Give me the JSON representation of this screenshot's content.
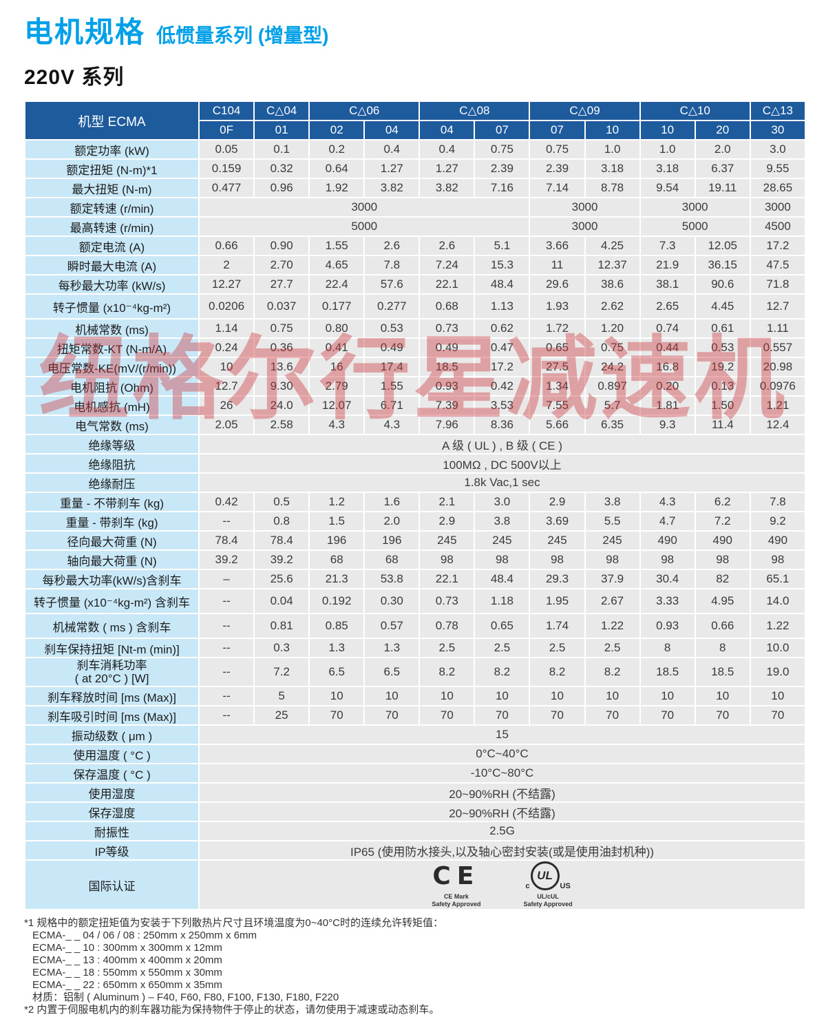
{
  "page": {
    "title": "电机规格",
    "subtitle": "低惯量系列 (增量型)",
    "section_title": "220V 系列",
    "watermark": "纽格尔行星减速机"
  },
  "colors": {
    "title_blue": "#00a0e9",
    "header_blue": "#1d5b9d",
    "label_blue": "#c8e8f8",
    "cell_gray": "#e9e9e9",
    "watermark_red": "#cf383c"
  },
  "table": {
    "corner_label": "机型 ECMA",
    "header_groups": [
      {
        "label": "C104",
        "cols": 1
      },
      {
        "label": "C△04",
        "cols": 1
      },
      {
        "label": "C△06",
        "cols": 2
      },
      {
        "label": "C△08",
        "cols": 2
      },
      {
        "label": "C△09",
        "cols": 2
      },
      {
        "label": "C△10",
        "cols": 2
      },
      {
        "label": "C△13",
        "cols": 1
      }
    ],
    "sub_columns": [
      "0F",
      "01",
      "02",
      "04",
      "04",
      "07",
      "07",
      "10",
      "10",
      "20",
      "30"
    ],
    "rows": [
      {
        "label": "额定功率 (kW)",
        "values": [
          "0.05",
          "0.1",
          "0.2",
          "0.4",
          "0.4",
          "0.75",
          "0.75",
          "1.0",
          "1.0",
          "2.0",
          "3.0"
        ]
      },
      {
        "label": "额定扭矩 (N-m)*1",
        "values": [
          "0.159",
          "0.32",
          "0.64",
          "1.27",
          "1.27",
          "2.39",
          "2.39",
          "3.18",
          "3.18",
          "6.37",
          "9.55"
        ]
      },
      {
        "label": "最大扭矩 (N-m)",
        "values": [
          "0.477",
          "0.96",
          "1.92",
          "3.82",
          "3.82",
          "7.16",
          "7.14",
          "8.78",
          "9.54",
          "19.11",
          "28.65"
        ]
      },
      {
        "label": "额定转速 (r/min)",
        "spans": [
          {
            "text": "3000",
            "cols": 6
          },
          {
            "text": "3000",
            "cols": 2
          },
          {
            "text": "3000",
            "cols": 2
          },
          {
            "text": "3000",
            "cols": 1
          }
        ]
      },
      {
        "label": "最高转速 (r/min)",
        "spans": [
          {
            "text": "5000",
            "cols": 6
          },
          {
            "text": "3000",
            "cols": 2
          },
          {
            "text": "5000",
            "cols": 2
          },
          {
            "text": "4500",
            "cols": 1
          }
        ]
      },
      {
        "label": "额定电流 (A)",
        "values": [
          "0.66",
          "0.90",
          "1.55",
          "2.6",
          "2.6",
          "5.1",
          "3.66",
          "4.25",
          "7.3",
          "12.05",
          "17.2"
        ]
      },
      {
        "label": "瞬时最大电流 (A)",
        "values": [
          "2",
          "2.70",
          "4.65",
          "7.8",
          "7.24",
          "15.3",
          "11",
          "12.37",
          "21.9",
          "36.15",
          "47.5"
        ]
      },
      {
        "label": "每秒最大功率 (kW/s)",
        "values": [
          "12.27",
          "27.7",
          "22.4",
          "57.6",
          "22.1",
          "48.4",
          "29.6",
          "38.6",
          "38.1",
          "90.6",
          "71.8"
        ]
      },
      {
        "label": "转子惯量 (x10⁻⁴kg-m²)",
        "values": [
          "0.0206",
          "0.037",
          "0.177",
          "0.277",
          "0.68",
          "1.13",
          "1.93",
          "2.62",
          "2.65",
          "4.45",
          "12.7"
        ]
      },
      {
        "label": "机械常数 (ms)",
        "values": [
          "1.14",
          "0.75",
          "0.80",
          "0.53",
          "0.73",
          "0.62",
          "1.72",
          "1.20",
          "0.74",
          "0.61",
          "1.11"
        ]
      },
      {
        "label": "扭矩常数-KT (N-m/A)",
        "values": [
          "0.24",
          "0.36",
          "0.41",
          "0.49",
          "0.49",
          "0.47",
          "0.65",
          "0.75",
          "0.44",
          "0.53",
          "0.557"
        ]
      },
      {
        "label": "电压常数-KE(mV/(r/min))",
        "values": [
          "10",
          "13.6",
          "16",
          "17.4",
          "18.5",
          "17.2",
          "27.5",
          "24.2",
          "16.8",
          "19.2",
          "20.98"
        ]
      },
      {
        "label": "电机阻抗 (Ohm)",
        "values": [
          "12.7",
          "9.30",
          "2.79",
          "1.55",
          "0.93",
          "0.42",
          "1.34",
          "0.897",
          "0.20",
          "0.13",
          "0.0976"
        ]
      },
      {
        "label": "电机感抗 (mH)",
        "values": [
          "26",
          "24.0",
          "12.07",
          "6.71",
          "7.39",
          "3.53",
          "7.55",
          "5.7",
          "1.81",
          "1.50",
          "1.21"
        ]
      },
      {
        "label": "电气常数 (ms)",
        "values": [
          "2.05",
          "2.58",
          "4.3",
          "4.3",
          "7.96",
          "8.36",
          "5.66",
          "6.35",
          "9.3",
          "11.4",
          "12.4"
        ]
      },
      {
        "label": "绝缘等级",
        "spans": [
          {
            "text": "A 级 ( UL ) , B 级 ( CE )",
            "cols": 11
          }
        ]
      },
      {
        "label": "绝缘阻抗",
        "spans": [
          {
            "text": "100MΩ , DC 500V以上",
            "cols": 11
          }
        ]
      },
      {
        "label": "绝缘耐压",
        "spans": [
          {
            "text": "1.8k Vac,1 sec",
            "cols": 11
          }
        ]
      },
      {
        "label": "重量 - 不带刹车 (kg)",
        "values": [
          "0.42",
          "0.5",
          "1.2",
          "1.6",
          "2.1",
          "3.0",
          "2.9",
          "3.8",
          "4.3",
          "6.2",
          "7.8"
        ]
      },
      {
        "label": "重量 - 带刹车 (kg)",
        "values": [
          "--",
          "0.8",
          "1.5",
          "2.0",
          "2.9",
          "3.8",
          "3.69",
          "5.5",
          "4.7",
          "7.2",
          "9.2"
        ]
      },
      {
        "label": "径向最大荷重 (N)",
        "values": [
          "78.4",
          "78.4",
          "196",
          "196",
          "245",
          "245",
          "245",
          "245",
          "490",
          "490",
          "490"
        ]
      },
      {
        "label": "轴向最大荷重 (N)",
        "values": [
          "39.2",
          "39.2",
          "68",
          "68",
          "98",
          "98",
          "98",
          "98",
          "98",
          "98",
          "98"
        ]
      },
      {
        "label": "每秒最大功率(kW/s)含刹车",
        "values": [
          "–",
          "25.6",
          "21.3",
          "53.8",
          "22.1",
          "48.4",
          "29.3",
          "37.9",
          "30.4",
          "82",
          "65.1"
        ]
      },
      {
        "label": "转子惯量 (x10⁻⁴kg-m²) 含刹车",
        "values": [
          "--",
          "0.04",
          "0.192",
          "0.30",
          "0.73",
          "1.18",
          "1.95",
          "2.67",
          "3.33",
          "4.95",
          "14.0"
        ]
      },
      {
        "label": "机械常数 ( ms ) 含刹车",
        "values": [
          "--",
          "0.81",
          "0.85",
          "0.57",
          "0.78",
          "0.65",
          "1.74",
          "1.22",
          "0.93",
          "0.66",
          "1.22"
        ]
      },
      {
        "label": "刹车保持扭矩 [Nt-m (min)]",
        "values": [
          "--",
          "0.3",
          "1.3",
          "1.3",
          "2.5",
          "2.5",
          "2.5",
          "2.5",
          "8",
          "8",
          "10.0"
        ]
      },
      {
        "label": "刹车消耗功率",
        "label2": "( at 20°C ) [W]",
        "values": [
          "--",
          "7.2",
          "6.5",
          "6.5",
          "8.2",
          "8.2",
          "8.2",
          "8.2",
          "18.5",
          "18.5",
          "19.0"
        ]
      },
      {
        "label": "刹车释放时间 [ms (Max)]",
        "values": [
          "--",
          "5",
          "10",
          "10",
          "10",
          "10",
          "10",
          "10",
          "10",
          "10",
          "10"
        ]
      },
      {
        "label": "刹车吸引时间 [ms (Max)]",
        "values": [
          "--",
          "25",
          "70",
          "70",
          "70",
          "70",
          "70",
          "70",
          "70",
          "70",
          "70"
        ]
      },
      {
        "label": "振动级数 ( μm )",
        "spans": [
          {
            "text": "15",
            "cols": 11
          }
        ]
      },
      {
        "label": "使用温度 ( °C )",
        "spans": [
          {
            "text": "0°C~40°C",
            "cols": 11
          }
        ]
      },
      {
        "label": "保存温度 ( °C )",
        "spans": [
          {
            "text": "-10°C~80°C",
            "cols": 11
          }
        ]
      },
      {
        "label": "使用湿度",
        "spans": [
          {
            "text": "20~90%RH (不结露)",
            "cols": 11
          }
        ]
      },
      {
        "label": "保存湿度",
        "spans": [
          {
            "text": "20~90%RH (不结露)",
            "cols": 11
          }
        ]
      },
      {
        "label": "耐振性",
        "spans": [
          {
            "text": "2.5G",
            "cols": 11
          }
        ]
      },
      {
        "label": "IP等级",
        "spans": [
          {
            "text": "IP65 (使用防水接头,以及轴心密封安装(或是使用油封机种))",
            "cols": 11
          }
        ]
      },
      {
        "label": "国际认证",
        "cert": true
      }
    ]
  },
  "certifications": [
    {
      "symbol": "CE",
      "line1": "CE Mark",
      "line2": "Safety Approved"
    },
    {
      "symbol": "UL",
      "left": "c",
      "right": "US",
      "line1": "UL/cUL",
      "line2": "Safety Approved"
    }
  ],
  "footnotes": [
    "*1 规格中的额定扭矩值为安装于下列散热片尺寸且环境温度为0~40°C时的连续允许转矩值：",
    "ECMA-_ _ 04 / 06 / 08 : 250mm x 250mm x 6mm",
    "ECMA-_ _ 10 : 300mm x 300mm x 12mm",
    "ECMA-_ _ 13 : 400mm x 400mm x 20mm",
    "ECMA-_ _ 18 : 550mm x 550mm x 30mm",
    "ECMA-_ _ 22 : 650mm x 650mm x 35mm",
    "材质：铝制 ( Aluminum ) – F40, F60, F80, F100, F130, F180, F220",
    "*2 内置于伺服电机内的刹车器功能为保持物件于停止的状态，请勿使用于减速或动态刹车。"
  ]
}
